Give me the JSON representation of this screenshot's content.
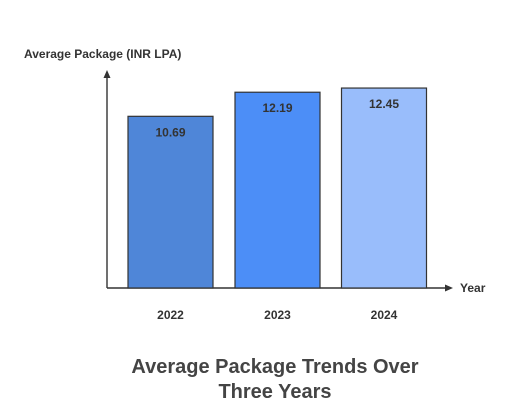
{
  "chart_data": {
    "type": "bar",
    "title_lines": [
      "Average Package Trends Over",
      "Three Years"
    ],
    "ylabel": "Average Package (INR LPA)",
    "xlabel": "Year",
    "categories": [
      "2022",
      "2023",
      "2024"
    ],
    "values": [
      10.69,
      12.19,
      12.45
    ],
    "data_labels": [
      "10.69",
      "12.19",
      "12.45"
    ],
    "bar_colors": [
      "#4f86d8",
      "#4c8ef7",
      "#99bdfb"
    ],
    "axis_color": "#333333",
    "ylim": [
      0,
      13.2
    ],
    "grid": false,
    "legend": "none"
  }
}
